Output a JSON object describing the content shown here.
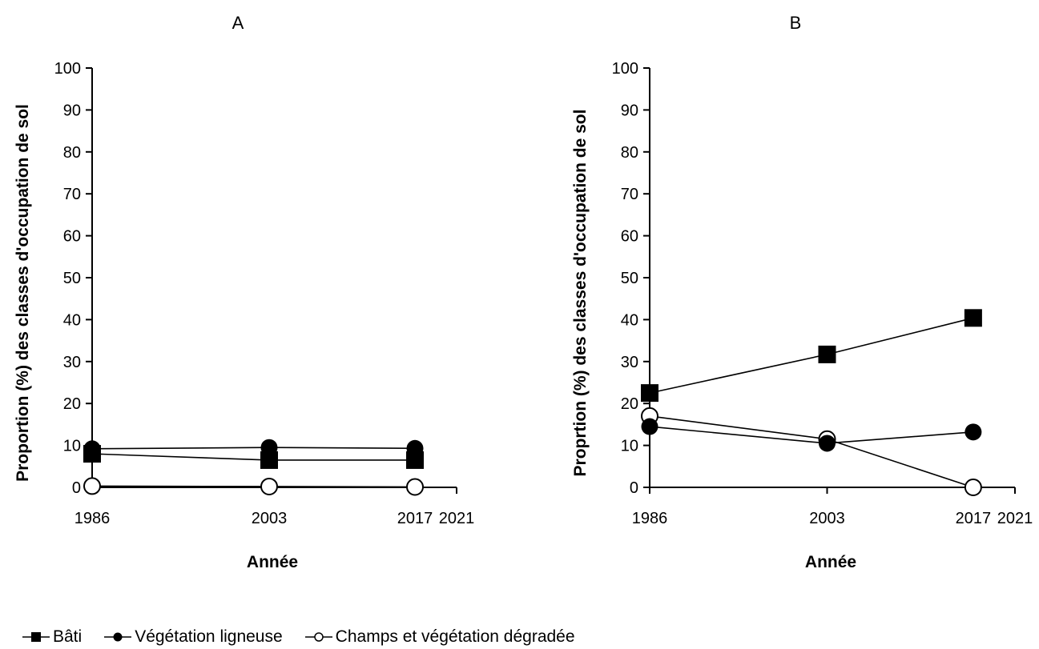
{
  "chart_data": [
    {
      "type": "line",
      "title": "A",
      "xlabel": "Année",
      "ylabel": "Proportion (%) des classes d'occupation de sol",
      "x_ticks": [
        1986,
        2003,
        2017,
        2021
      ],
      "y_ticks": [
        0,
        10,
        20,
        30,
        40,
        50,
        60,
        70,
        80,
        90,
        100
      ],
      "xlim": [
        1986,
        2021
      ],
      "ylim": [
        0,
        100
      ],
      "grid": false,
      "x": [
        1986,
        2003,
        2017
      ],
      "series": [
        {
          "name": "Bâti",
          "marker": "filled-square",
          "values": [
            8,
            6.5,
            6.5
          ]
        },
        {
          "name": "Végétation ligneuse",
          "marker": "filled-circle",
          "values": [
            9.2,
            9.5,
            9.3
          ]
        },
        {
          "name": "Champs et  végétation dégradée",
          "marker": "open-circle",
          "values": [
            0.3,
            0.2,
            0.1
          ]
        }
      ]
    },
    {
      "type": "line",
      "title": "B",
      "xlabel": "Année",
      "ylabel": "Proprtion (%) des classes d'occupation de sol",
      "x_ticks": [
        1986,
        2003,
        2017,
        2021
      ],
      "y_ticks": [
        0,
        10,
        20,
        30,
        40,
        50,
        60,
        70,
        80,
        90,
        100
      ],
      "xlim": [
        1986,
        2021
      ],
      "ylim": [
        0,
        100
      ],
      "grid": false,
      "x": [
        1986,
        2003,
        2017
      ],
      "series": [
        {
          "name": "Bâti",
          "marker": "filled-square",
          "values": [
            22.5,
            31.7,
            40.4
          ]
        },
        {
          "name": "Végétation ligneuse",
          "marker": "filled-circle",
          "values": [
            14.5,
            10.5,
            13.2
          ]
        },
        {
          "name": "Champs et  végétation dégradée",
          "marker": "open-circle",
          "values": [
            17,
            11.5,
            0
          ]
        }
      ]
    }
  ],
  "legend": {
    "placement": "bottom-left",
    "items": [
      {
        "label": "Bâti",
        "marker": "filled-square"
      },
      {
        "label": "Végétation ligneuse",
        "marker": "filled-circle"
      },
      {
        "label": "Champs et  végétation dégradée",
        "marker": "open-circle"
      }
    ]
  },
  "colors": {
    "line": "#000000",
    "marker_fill": "#000000",
    "open_marker_fill": "#ffffff",
    "background": "#ffffff"
  }
}
